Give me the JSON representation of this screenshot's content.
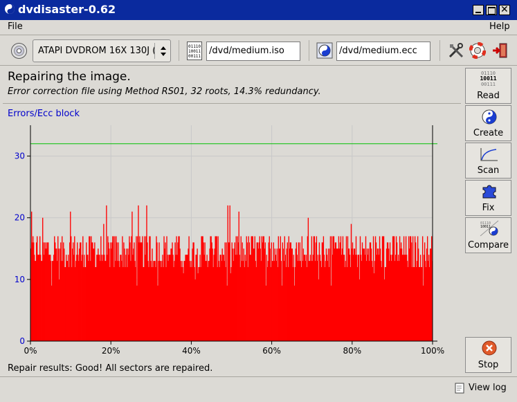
{
  "window": {
    "title": "dvdisaster-0.62"
  },
  "menu": {
    "file": "File",
    "help": "Help"
  },
  "toolbar": {
    "drive": "ATAPI DVDROM 16X 130J (",
    "image_file": "/dvd/medium.iso",
    "ecc_file": "/dvd/medium.ecc"
  },
  "status": {
    "heading": "Repairing the image.",
    "subtitle": "Error correction file using Method RS01, 32 roots, 14.3% redundancy.",
    "result": "Repair results: Good! All sectors are repaired."
  },
  "sidebar": {
    "read": "Read",
    "create": "Create",
    "scan": "Scan",
    "fix": "Fix",
    "compare": "Compare",
    "stop": "Stop",
    "read_icon_lines": [
      "01110",
      "10011",
      "00111"
    ]
  },
  "footer": {
    "view_log": "View log"
  },
  "colors": {
    "titlebar": "#0a2a9e",
    "bars": "#ff0000",
    "threshold": "#00c000",
    "axis_text": "#0000cc"
  },
  "chart_data": {
    "type": "bar",
    "ylabel": "Errors/Ecc block",
    "ylim": [
      0,
      35
    ],
    "yticks": [
      0,
      10,
      20,
      30
    ],
    "xticks": [
      "0%",
      "20%",
      "40%",
      "60%",
      "80%",
      "100%"
    ],
    "threshold": 32,
    "series": [
      {
        "values": []
      }
    ],
    "value_range_approx": [
      9,
      22
    ],
    "typical_range_approx": [
      12,
      17
    ]
  }
}
